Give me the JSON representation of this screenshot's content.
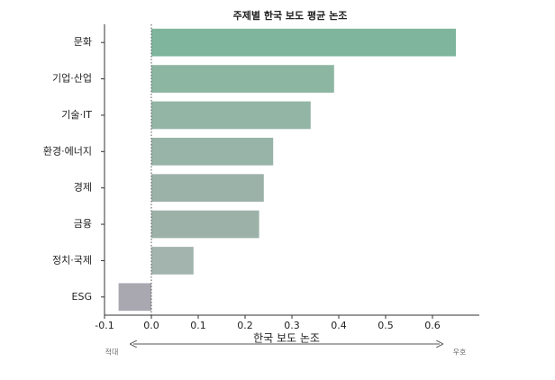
{
  "chart_data": {
    "type": "barh",
    "title": "주제별 한국 보도 평균 논조",
    "categories": [
      "문화",
      "기업·산업",
      "기술·IT",
      "환경·에너지",
      "경제",
      "금융",
      "정치·국제",
      "ESG"
    ],
    "values": [
      0.65,
      0.39,
      0.34,
      0.26,
      0.24,
      0.23,
      0.09,
      -0.07
    ],
    "colors": [
      "#80b59d",
      "#8db6a2",
      "#93b5a6",
      "#98b3a8",
      "#9bb2a9",
      "#9cb2a9",
      "#a3b4af",
      "#a9a7b0"
    ],
    "xlabel": "한국 보도 논조",
    "xlim": [
      -0.1,
      0.7
    ],
    "xticks": [
      -0.1,
      {
        "value": 0,
        "label": "0.0"
      },
      0.1,
      0.2,
      0.3,
      0.4,
      0.5,
      0.6
    ],
    "annotations": {
      "left": "적대",
      "right": "우호"
    }
  }
}
